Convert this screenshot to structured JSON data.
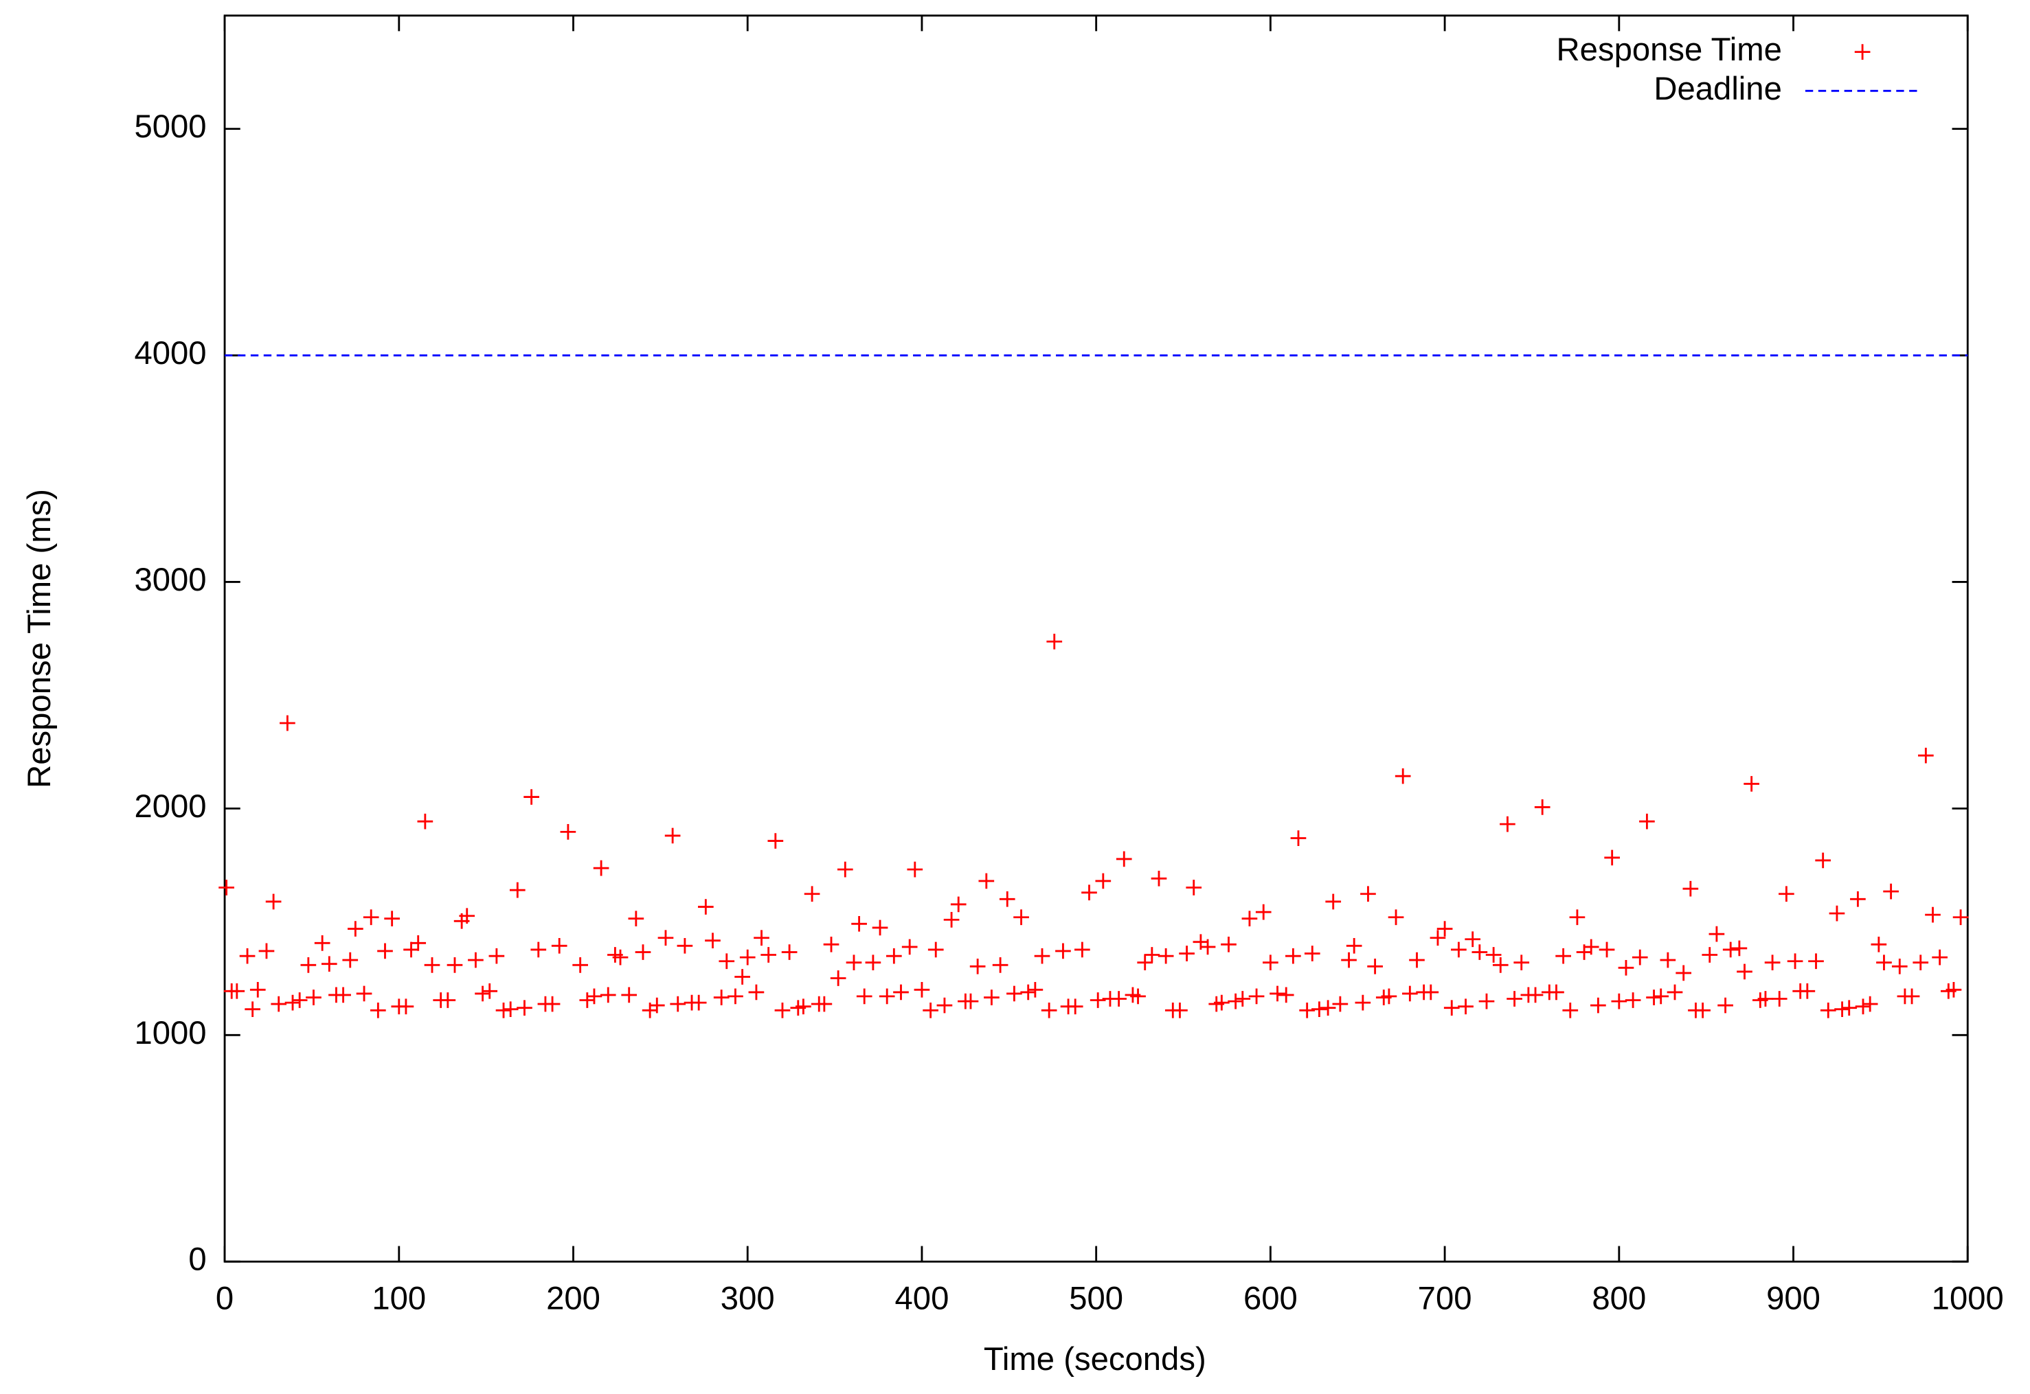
{
  "chart_data": {
    "type": "scatter",
    "xlabel": "Time (seconds)",
    "ylabel": "Response Time (ms)",
    "xlim": [
      0,
      1000
    ],
    "ylim": [
      0,
      5500
    ],
    "xticks": [
      0,
      100,
      200,
      300,
      400,
      500,
      600,
      700,
      800,
      900,
      1000
    ],
    "yticks": [
      0,
      1000,
      2000,
      3000,
      4000,
      5000
    ],
    "legend": "top right",
    "series": [
      {
        "name": "Response Time",
        "color": "#ff0000",
        "style": "points",
        "x": [
          1,
          4,
          7,
          13,
          16,
          19,
          24,
          28,
          31,
          36,
          39,
          43,
          48,
          51,
          56,
          60,
          64,
          68,
          72,
          75,
          80,
          84,
          88,
          92,
          96,
          100,
          104,
          107,
          111,
          115,
          119,
          124,
          128,
          132,
          136,
          139,
          144,
          148,
          152,
          156,
          160,
          164,
          168,
          172,
          176,
          180,
          184,
          188,
          192,
          197,
          204,
          208,
          212,
          216,
          220,
          224,
          227,
          232,
          236,
          240,
          244,
          248,
          253,
          257,
          260,
          264,
          268,
          272,
          276,
          280,
          285,
          288,
          293,
          297,
          300,
          305,
          308,
          312,
          316,
          320,
          324,
          329,
          332,
          337,
          341,
          344,
          348,
          352,
          356,
          361,
          364,
          367,
          372,
          376,
          380,
          384,
          388,
          393,
          396,
          400,
          405,
          408,
          413,
          417,
          421,
          425,
          428,
          432,
          437,
          440,
          445,
          449,
          453,
          457,
          461,
          465,
          469,
          473,
          476,
          481,
          484,
          488,
          492,
          496,
          501,
          504,
          508,
          513,
          516,
          521,
          524,
          528,
          532,
          536,
          540,
          544,
          548,
          552,
          556,
          560,
          564,
          569,
          572,
          576,
          580,
          584,
          588,
          592,
          596,
          600,
          604,
          609,
          613,
          616,
          621,
          624,
          628,
          633,
          636,
          640,
          645,
          648,
          653,
          656,
          660,
          665,
          668,
          672,
          676,
          680,
          684,
          688,
          692,
          696,
          700,
          704,
          708,
          712,
          716,
          720,
          724,
          728,
          732,
          736,
          740,
          744,
          748,
          752,
          756,
          760,
          764,
          768,
          772,
          776,
          780,
          784,
          788,
          793,
          796,
          800,
          804,
          808,
          812,
          816,
          820,
          824,
          828,
          832,
          837,
          841,
          844,
          848,
          852,
          856,
          861,
          864,
          869,
          872,
          876,
          881,
          884,
          888,
          892,
          896,
          901,
          904,
          908,
          913,
          917,
          920,
          925,
          928,
          932,
          937,
          940,
          944,
          949,
          952,
          956,
          961,
          964,
          968,
          973,
          976,
          980,
          984,
          989,
          992,
          996
        ],
        "values": [
          1651,
          1194,
          1194,
          1349,
          1114,
          1200,
          1371,
          1589,
          1137,
          2377,
          1143,
          1154,
          1309,
          1166,
          1406,
          1314,
          1177,
          1177,
          1331,
          1469,
          1183,
          1520,
          1109,
          1371,
          1514,
          1126,
          1126,
          1377,
          1406,
          1943,
          1309,
          1154,
          1154,
          1309,
          1503,
          1526,
          1331,
          1183,
          1194,
          1349,
          1109,
          1114,
          1640,
          1120,
          2051,
          1377,
          1137,
          1137,
          1394,
          1897,
          1309,
          1154,
          1171,
          1737,
          1177,
          1354,
          1343,
          1177,
          1514,
          1366,
          1109,
          1131,
          1429,
          1880,
          1137,
          1394,
          1143,
          1143,
          1566,
          1417,
          1166,
          1326,
          1171,
          1257,
          1343,
          1189,
          1429,
          1354,
          1857,
          1109,
          1366,
          1120,
          1126,
          1623,
          1137,
          1137,
          1400,
          1251,
          1731,
          1320,
          1491,
          1171,
          1320,
          1474,
          1171,
          1349,
          1189,
          1389,
          1731,
          1200,
          1109,
          1377,
          1131,
          1509,
          1577,
          1149,
          1149,
          1303,
          1680,
          1166,
          1309,
          1600,
          1183,
          1520,
          1189,
          1200,
          1349,
          1109,
          2737,
          1371,
          1126,
          1126,
          1377,
          1629,
          1154,
          1680,
          1160,
          1160,
          1777,
          1177,
          1171,
          1320,
          1354,
          1691,
          1349,
          1109,
          1109,
          1360,
          1651,
          1411,
          1389,
          1137,
          1143,
          1400,
          1149,
          1160,
          1514,
          1171,
          1543,
          1320,
          1183,
          1177,
          1349,
          1869,
          1109,
          1360,
          1114,
          1120,
          1589,
          1137,
          1331,
          1394,
          1143,
          1623,
          1303,
          1166,
          1171,
          1520,
          2143,
          1183,
          1331,
          1189,
          1189,
          1429,
          1469,
          1120,
          1377,
          1126,
          1423,
          1366,
          1149,
          1354,
          1309,
          1931,
          1160,
          1320,
          1177,
          1177,
          2006,
          1189,
          1189,
          1349,
          1109,
          1520,
          1366,
          1389,
          1131,
          1377,
          1783,
          1149,
          1297,
          1154,
          1343,
          1943,
          1166,
          1171,
          1331,
          1189,
          1274,
          1646,
          1109,
          1109,
          1354,
          1446,
          1131,
          1377,
          1383,
          1280,
          2109,
          1154,
          1160,
          1320,
          1160,
          1623,
          1326,
          1194,
          1194,
          1326,
          1771,
          1109,
          1537,
          1114,
          1120,
          1600,
          1126,
          1137,
          1400,
          1320,
          1634,
          1303,
          1171,
          1171,
          1320,
          2234,
          1531,
          1343,
          1194,
          1200,
          1520
        ]
      },
      {
        "name": "Deadline",
        "color": "#0000ff",
        "style": "dashed",
        "x": [
          0,
          1000
        ],
        "values": [
          4000,
          4000
        ]
      }
    ]
  }
}
